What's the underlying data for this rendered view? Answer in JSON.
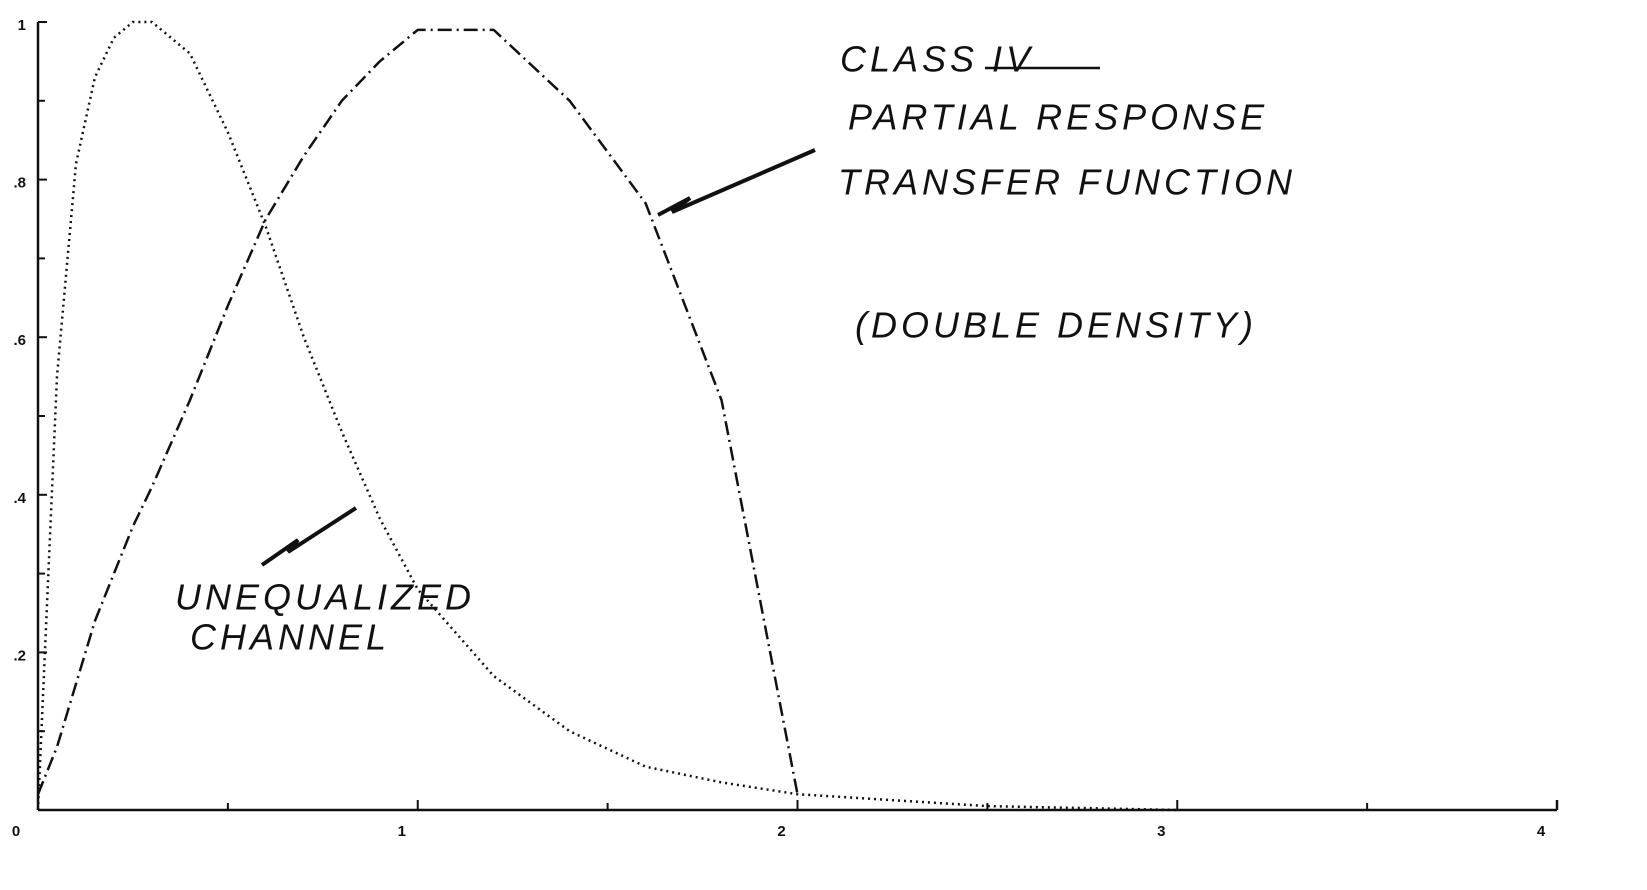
{
  "chart_data": {
    "type": "line",
    "x": [
      0,
      0.05,
      0.1,
      0.15,
      0.2,
      0.25,
      0.3,
      0.4,
      0.5,
      0.6,
      0.7,
      0.8,
      0.9,
      1.0,
      1.2,
      1.4,
      1.6,
      1.8,
      2.0,
      2.5,
      3.0
    ],
    "series": [
      {
        "color": "#111111",
        "style": "dotted",
        "values": [
          0,
          0.55,
          0.82,
          0.93,
          0.98,
          1.0,
          1.0,
          0.96,
          0.86,
          0.74,
          0.6,
          0.48,
          0.37,
          0.28,
          0.17,
          0.1,
          0.055,
          0.035,
          0.02,
          0.005,
          0
        ]
      },
      {
        "color": "#111111",
        "style": "dashdot",
        "values": [
          0.02,
          0.08,
          0.16,
          0.24,
          0.3,
          0.36,
          0.41,
          0.52,
          0.64,
          0.75,
          0.83,
          0.9,
          0.95,
          0.99,
          0.99,
          0.9,
          0.77,
          0.52,
          0.02,
          null,
          null
        ]
      }
    ],
    "xlim": [
      0,
      4
    ],
    "xticks": [
      0,
      1,
      2,
      3,
      4
    ],
    "xminor": [
      0.5,
      1.5,
      2.5,
      3.5
    ],
    "ylim": [
      0,
      1
    ],
    "yticks": [
      {
        "value": 0.2,
        "label": ".2"
      },
      {
        "value": 0.4,
        "label": ".4"
      },
      {
        "value": 0.6,
        "label": ".6"
      },
      {
        "value": 0.8,
        "label": ".8"
      },
      1
    ],
    "yminor": [
      0.1,
      0.3,
      0.5,
      0.7,
      0.9
    ],
    "annotations": [
      "CLASS IV",
      "PARTIAL RESPONSE",
      "TRANSFER FUNCTION",
      "(DOUBLE DENSITY)",
      "UNEQUALIZED",
      "CHANNEL"
    ]
  }
}
